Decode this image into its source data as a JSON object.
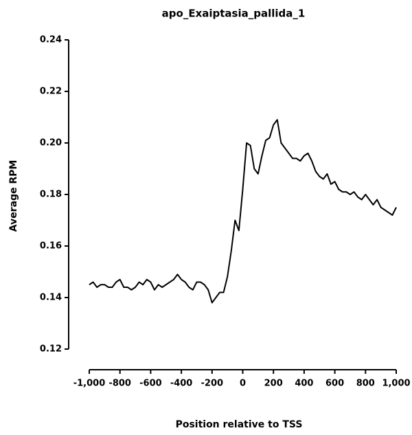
{
  "chart_data": {
    "type": "line",
    "title": "apo_Exaiptasia_pallida_1",
    "x_label": "Position relative to TSS",
    "y_label": "Average RPM",
    "x": [
      -1000,
      -975,
      -950,
      -925,
      -900,
      -875,
      -850,
      -825,
      -800,
      -775,
      -750,
      -725,
      -700,
      -675,
      -650,
      -625,
      -600,
      -575,
      -550,
      -525,
      -500,
      -475,
      -450,
      -425,
      -400,
      -375,
      -350,
      -325,
      -300,
      -275,
      -250,
      -225,
      -200,
      -175,
      -150,
      -125,
      -100,
      -75,
      -50,
      -25,
      0,
      25,
      50,
      75,
      100,
      125,
      150,
      175,
      200,
      225,
      250,
      275,
      300,
      325,
      350,
      375,
      400,
      425,
      450,
      475,
      500,
      525,
      550,
      575,
      600,
      625,
      650,
      675,
      700,
      725,
      750,
      775,
      800,
      825,
      850,
      875,
      900,
      925,
      950,
      975,
      1000
    ],
    "series": [
      {
        "name": "apo_Exaiptasia_pallida_1",
        "color": "#000000",
        "values": [
          0.145,
          0.146,
          0.144,
          0.145,
          0.145,
          0.144,
          0.144,
          0.146,
          0.147,
          0.144,
          0.144,
          0.143,
          0.144,
          0.146,
          0.145,
          0.147,
          0.146,
          0.143,
          0.145,
          0.144,
          0.145,
          0.146,
          0.147,
          0.149,
          0.147,
          0.146,
          0.144,
          0.143,
          0.146,
          0.146,
          0.145,
          0.143,
          0.138,
          0.14,
          0.142,
          0.142,
          0.148,
          0.158,
          0.17,
          0.166,
          0.182,
          0.2,
          0.199,
          0.19,
          0.188,
          0.195,
          0.201,
          0.202,
          0.207,
          0.209,
          0.2,
          0.198,
          0.196,
          0.194,
          0.194,
          0.193,
          0.195,
          0.196,
          0.193,
          0.189,
          0.187,
          0.186,
          0.188,
          0.184,
          0.185,
          0.182,
          0.181,
          0.181,
          0.18,
          0.181,
          0.179,
          0.178,
          0.18,
          0.178,
          0.176,
          0.178,
          0.175,
          0.174,
          0.173,
          0.172,
          0.175
        ]
      }
    ],
    "xlim": [
      -1000,
      1000
    ],
    "xticks": [
      {
        "value": -1000,
        "label": "-1,000"
      },
      -800,
      -600,
      -400,
      -200,
      0,
      200,
      400,
      600,
      800,
      {
        "value": 1000,
        "label": "1,000"
      }
    ],
    "ylim": [
      0.12,
      0.24
    ],
    "yticks": [
      0.12,
      0.14,
      0.16,
      0.18,
      {
        "value": 0.2,
        "label": "0.20"
      },
      0.22,
      0.24
    ]
  }
}
